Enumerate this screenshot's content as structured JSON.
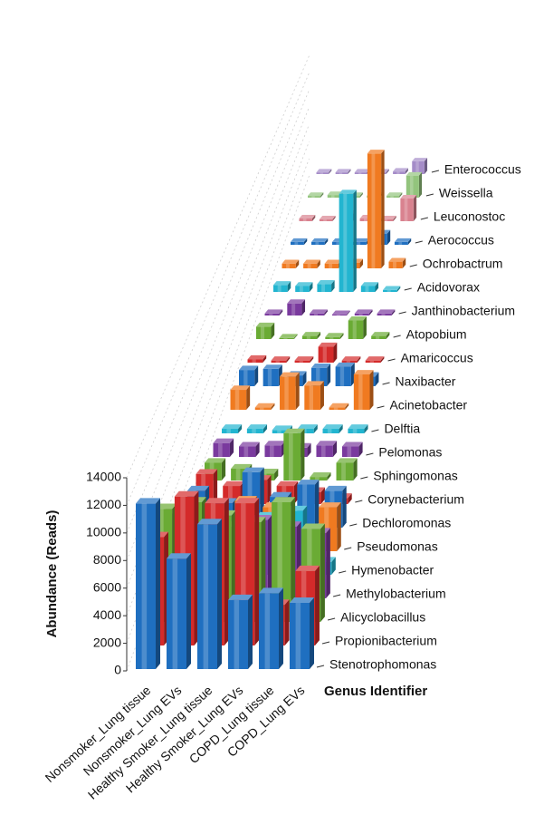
{
  "chart_data": {
    "type": "bar3d",
    "categories": [
      "Nonsmoker_Lung tissue",
      "Nonsmoker_Lung EVs",
      "Healthy Smoker_Lung tissue",
      "Healthy Smoker_Lung EVs",
      "COPD_Lung tissue",
      "COPD_Lung EVs"
    ],
    "y_label": "Abundance (Reads)",
    "z_label": "Genus Identifier",
    "ylim": [
      0,
      14000
    ],
    "yticks": [
      0,
      2000,
      4000,
      6000,
      8000,
      10000,
      12000,
      14000
    ],
    "grid": true,
    "series": [
      {
        "name": "Stenotrophomonas",
        "color": "#1f6fc0",
        "values": [
          12000,
          8000,
          10500,
          5000,
          5500,
          4800
        ]
      },
      {
        "name": "Propionibacterium",
        "color": "#d42a2a",
        "values": [
          8000,
          11000,
          10500,
          10500,
          3000,
          5500
        ]
      },
      {
        "name": "Alicyclobacillus",
        "color": "#6aab34",
        "values": [
          8500,
          9000,
          8000,
          7500,
          9000,
          7000
        ]
      },
      {
        "name": "Methylobacterium",
        "color": "#7a3a9e",
        "values": [
          6500,
          6000,
          5500,
          6000,
          5500,
          5000
        ]
      },
      {
        "name": "Hymenobacter",
        "color": "#22b5d0",
        "values": [
          4000,
          3000,
          3500,
          4500,
          5000,
          1000
        ]
      },
      {
        "name": "Pseudomonas",
        "color": "#f07a20",
        "values": [
          2000,
          2500,
          4000,
          3500,
          1500,
          3500
        ]
      },
      {
        "name": "Dechloromonas",
        "color": "#1f6fc0",
        "values": [
          3000,
          2000,
          4500,
          2500,
          3500,
          3000
        ]
      },
      {
        "name": "Corynebacterium",
        "color": "#d42a2a",
        "values": [
          2500,
          1500,
          2000,
          1500,
          1000,
          500
        ]
      },
      {
        "name": "Sphingomonas",
        "color": "#6aab34",
        "values": [
          1500,
          1000,
          600,
          4000,
          300,
          1500
        ]
      },
      {
        "name": "Pelomonas",
        "color": "#7a3a9e",
        "values": [
          1200,
          900,
          1000,
          800,
          1000,
          900
        ]
      },
      {
        "name": "Delftia",
        "color": "#22b5d0",
        "values": [
          400,
          400,
          300,
          400,
          400,
          400
        ]
      },
      {
        "name": "Acinetobacter",
        "color": "#f07a20",
        "values": [
          1800,
          200,
          3000,
          2200,
          200,
          3200
        ]
      },
      {
        "name": "Naxibacter",
        "color": "#1f6fc0",
        "values": [
          1500,
          1600,
          1000,
          1700,
          1800,
          900
        ]
      },
      {
        "name": "Amaricoccus",
        "color": "#d42a2a",
        "values": [
          300,
          200,
          200,
          1500,
          200,
          200
        ]
      },
      {
        "name": "Atopobium",
        "color": "#6aab34",
        "values": [
          1200,
          100,
          300,
          200,
          1800,
          300
        ]
      },
      {
        "name": "Janthinobacterium",
        "color": "#7a3a9e",
        "values": [
          200,
          1200,
          200,
          100,
          200,
          200
        ]
      },
      {
        "name": "Acidovorax",
        "color": "#22b5d0",
        "values": [
          700,
          600,
          800,
          10000,
          600,
          200
        ]
      },
      {
        "name": "Ochrobactrum",
        "color": "#f07a20",
        "values": [
          500,
          500,
          500,
          600,
          12000,
          700
        ]
      },
      {
        "name": "Aerococcus",
        "color": "#1f6fc0",
        "values": [
          300,
          300,
          300,
          300,
          1200,
          300
        ]
      },
      {
        "name": "Leuconostoc",
        "color": "#d9828f",
        "values": [
          300,
          200,
          800,
          300,
          200,
          2500
        ]
      },
      {
        "name": "Weissella",
        "color": "#93c47d",
        "values": [
          200,
          300,
          200,
          200,
          200,
          2500
        ]
      },
      {
        "name": "Enterococcus",
        "color": "#a58cc8",
        "values": [
          200,
          200,
          200,
          200,
          300,
          1500
        ]
      }
    ]
  }
}
